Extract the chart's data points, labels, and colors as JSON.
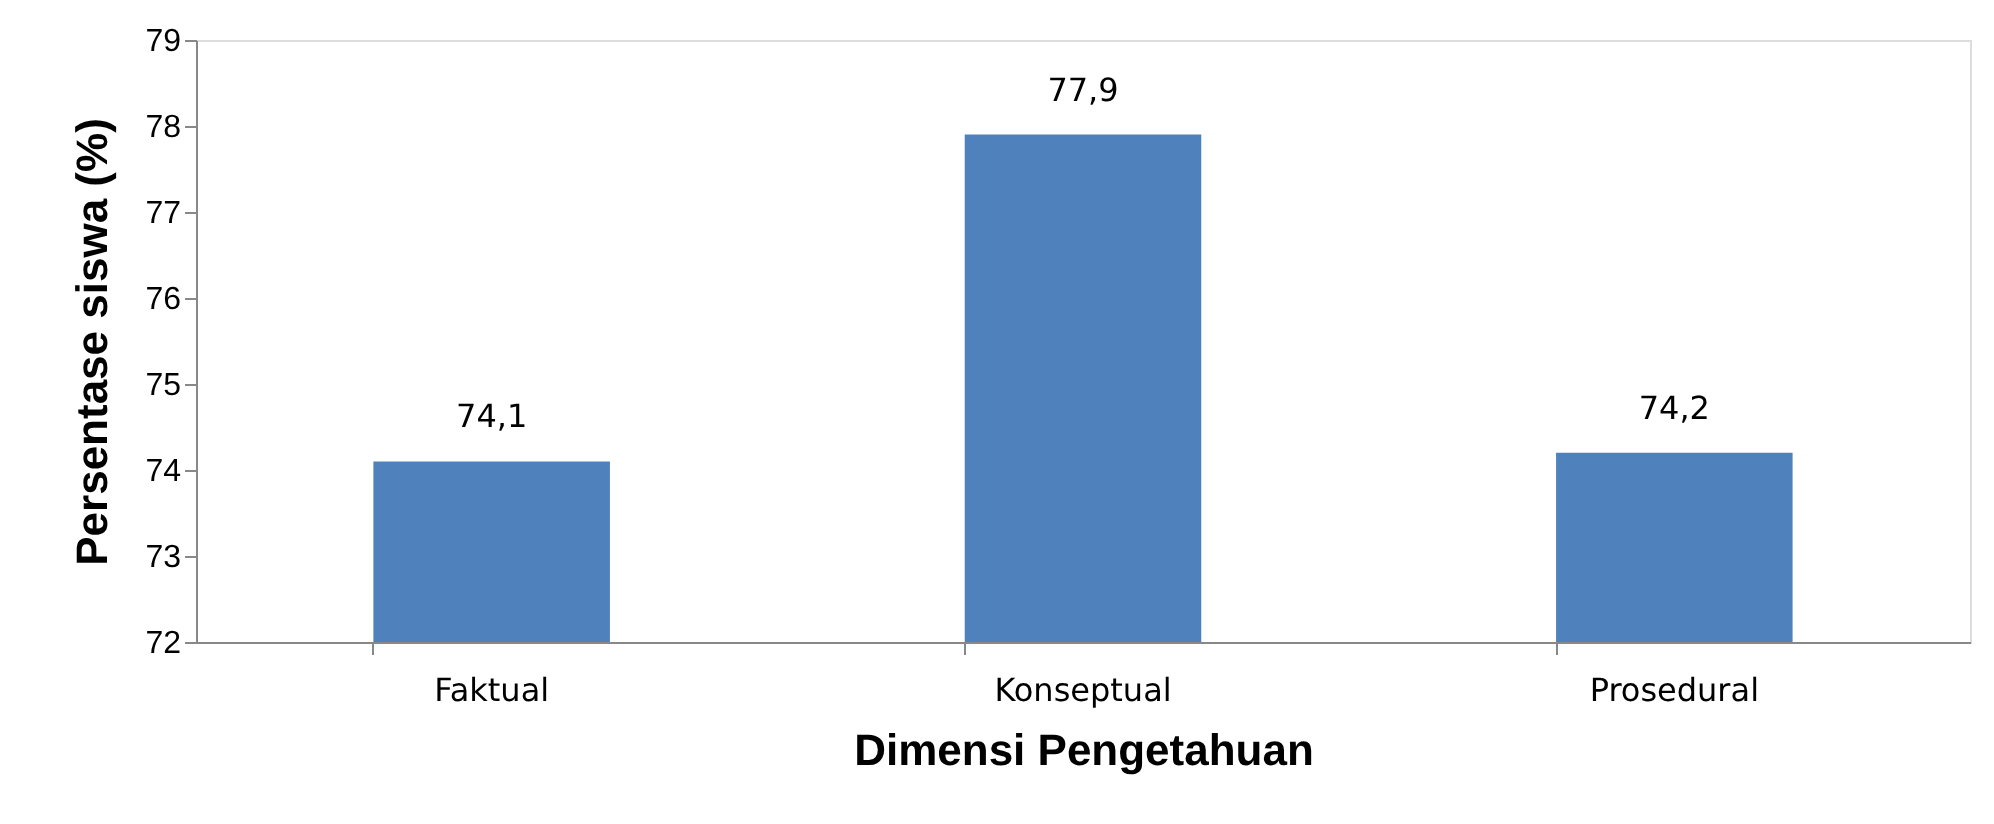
{
  "chart_data": {
    "type": "bar",
    "xlabel": "Dimensi Pengetahuan",
    "ylabel": "Persentase siswa (%)",
    "categories": [
      "Faktual",
      "Konseptual",
      "Prosedural"
    ],
    "values": [
      74.1,
      77.9,
      74.2
    ],
    "value_labels": [
      "74,1",
      "77,9",
      "74,2"
    ],
    "color": "#4f81bd",
    "ylim": [
      72,
      79
    ],
    "yticks": [
      72,
      73,
      74,
      75,
      76,
      77,
      78,
      79
    ],
    "grid": false
  }
}
